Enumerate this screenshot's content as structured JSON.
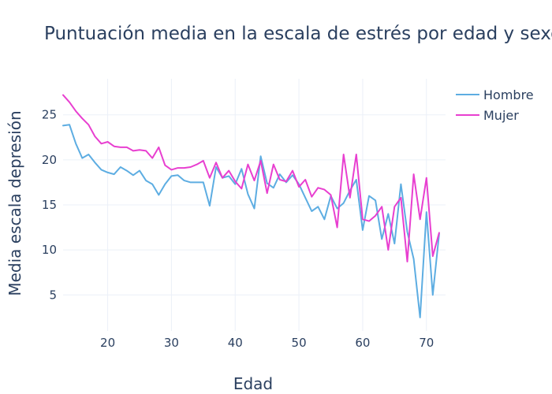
{
  "chart_data": {
    "type": "line",
    "title": "Puntuación media en la escala de estrés por edad y sexo",
    "xlabel": "Edad",
    "ylabel": "Media escala depresión",
    "xlim": [
      13,
      73
    ],
    "ylim": [
      1,
      29
    ],
    "x_ticks": [
      20,
      30,
      40,
      50,
      60,
      70
    ],
    "y_ticks": [
      5,
      10,
      15,
      20,
      25
    ],
    "grid": true,
    "legend_position": "top-right",
    "series": [
      {
        "name": "Hombre",
        "color": "#5dade2",
        "x": [
          13,
          14,
          15,
          16,
          17,
          18,
          19,
          20,
          21,
          22,
          23,
          24,
          25,
          26,
          27,
          28,
          29,
          30,
          31,
          32,
          33,
          34,
          35,
          36,
          37,
          38,
          39,
          40,
          41,
          42,
          43,
          44,
          45,
          46,
          47,
          48,
          49,
          50,
          51,
          52,
          53,
          54,
          55,
          56,
          57,
          58,
          59,
          60,
          61,
          62,
          63,
          64,
          65,
          66,
          67,
          68,
          69,
          70,
          71,
          72
        ],
        "y": [
          23.8,
          23.9,
          21.8,
          20.2,
          20.6,
          19.7,
          18.9,
          18.6,
          18.4,
          19.2,
          18.8,
          18.3,
          18.8,
          17.7,
          17.3,
          16.1,
          17.3,
          18.2,
          18.3,
          17.7,
          17.5,
          17.5,
          17.5,
          14.9,
          19.2,
          18.0,
          18.2,
          17.3,
          19.0,
          16.2,
          14.6,
          20.4,
          17.4,
          16.9,
          18.4,
          17.5,
          18.3,
          17.3,
          15.8,
          14.3,
          14.8,
          13.4,
          16.0,
          14.6,
          15.2,
          16.6,
          17.8,
          12.2,
          16.0,
          15.5,
          11.2,
          14.0,
          10.7,
          17.3,
          12.0,
          9.0,
          2.5,
          14.2,
          5.0,
          11.8
        ]
      },
      {
        "name": "Mujer",
        "color": "#e83fd0",
        "x": [
          13,
          14,
          15,
          16,
          17,
          18,
          19,
          20,
          21,
          22,
          23,
          24,
          25,
          26,
          27,
          28,
          29,
          30,
          31,
          32,
          33,
          34,
          35,
          36,
          37,
          38,
          39,
          40,
          41,
          42,
          43,
          44,
          45,
          46,
          47,
          48,
          49,
          50,
          51,
          52,
          53,
          54,
          55,
          56,
          57,
          58,
          59,
          60,
          61,
          62,
          63,
          64,
          65,
          66,
          67,
          68,
          69,
          70,
          71,
          72
        ],
        "y": [
          27.2,
          26.4,
          25.4,
          24.6,
          23.9,
          22.6,
          21.8,
          22.0,
          21.5,
          21.4,
          21.4,
          21.0,
          21.1,
          21.0,
          20.2,
          21.4,
          19.4,
          18.9,
          19.1,
          19.1,
          19.2,
          19.5,
          19.9,
          18.0,
          19.7,
          18.0,
          18.8,
          17.6,
          16.8,
          19.5,
          17.7,
          19.9,
          16.3,
          19.5,
          17.8,
          17.6,
          18.8,
          17.0,
          17.8,
          15.9,
          16.9,
          16.7,
          16.1,
          12.5,
          20.6,
          15.8,
          20.6,
          13.4,
          13.2,
          13.8,
          14.8,
          10.0,
          14.8,
          15.8,
          8.7,
          18.4,
          13.4,
          18.0,
          9.3,
          11.9
        ]
      }
    ]
  }
}
